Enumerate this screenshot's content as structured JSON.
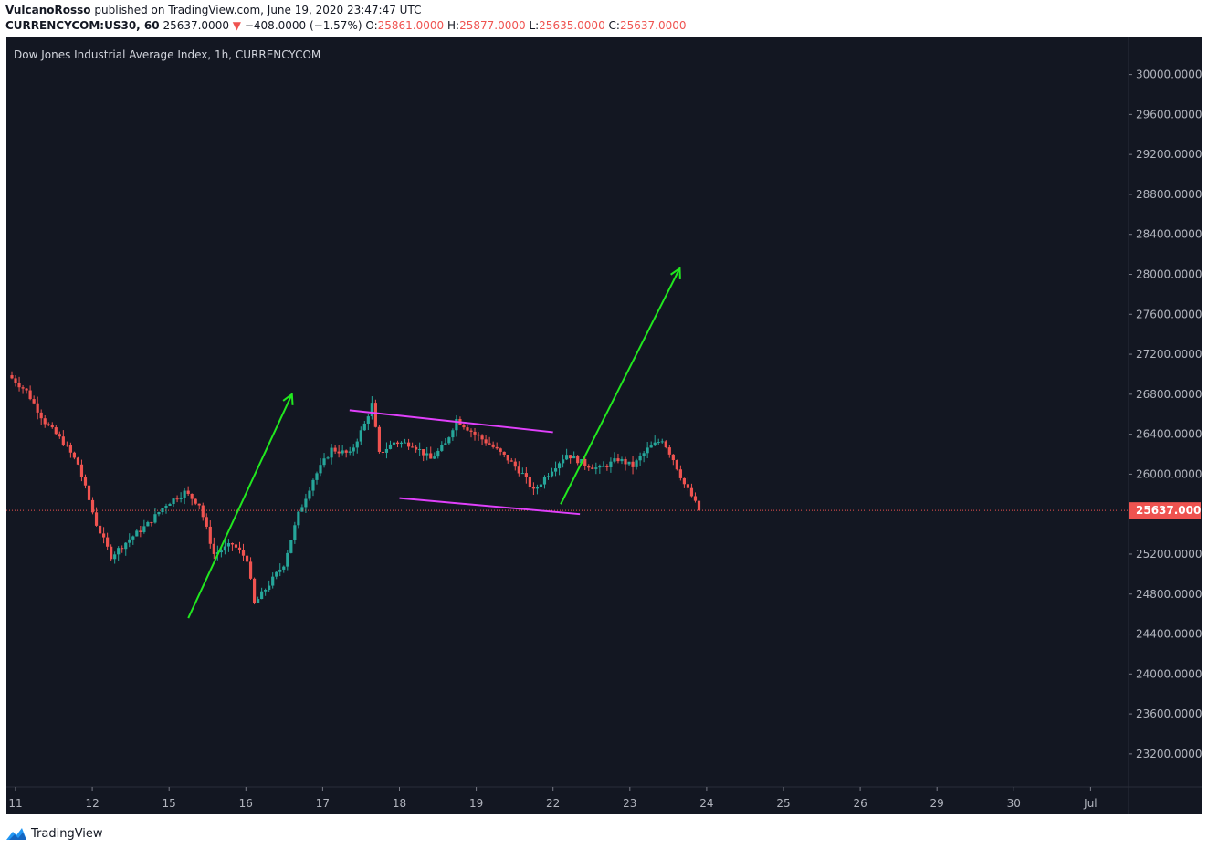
{
  "header": {
    "author": "VulcanoRosso",
    "published_text": "published on TradingView.com, June 19, 2020 23:47:47 UTC",
    "symbol_prefix": "CURRENCYCOM:US30, 60",
    "last_price": "25637.0000",
    "change_arrow": "▼",
    "change": "−408.0000 (−1.57%)",
    "o_label": "O:",
    "o_value": "25861.0000",
    "h_label": "H:",
    "h_value": "25877.0000",
    "l_label": "L:",
    "l_value": "25635.0000",
    "c_label": "C:",
    "c_value": "25637.0000"
  },
  "footer": {
    "brand": "TradingView",
    "logo_icon": "tradingview-logo-icon"
  },
  "colors": {
    "background": "#131722",
    "up": "#26a69a",
    "down": "#ef5350",
    "channel": "#e040fb",
    "arrow": "#21e81f",
    "axis_text": "#b2b5be",
    "price_tag": "#ef5350"
  },
  "chart_data": {
    "type": "candlestick",
    "title": "Dow Jones Industrial Average Index, 1h, CURRENCYCOM",
    "xlabel": "",
    "ylabel": "",
    "ylim": [
      22870,
      30380
    ],
    "y_ticks": [
      "30000.0000",
      "29600.0000",
      "29200.0000",
      "28800.0000",
      "28400.0000",
      "28000.0000",
      "27600.0000",
      "27200.0000",
      "26800.0000",
      "26400.0000",
      "26000.0000",
      "25200.0000",
      "24800.0000",
      "24400.0000",
      "24000.0000",
      "23600.0000",
      "23200.0000"
    ],
    "x_ticks": [
      "11",
      "12",
      "15",
      "16",
      "17",
      "18",
      "19",
      "22",
      "23",
      "24",
      "25",
      "26",
      "29",
      "30",
      "Jul"
    ],
    "grid": false,
    "last_price_line": {
      "value": 25637,
      "label": "25637.0000"
    },
    "candle_anchors": [
      {
        "i": 0,
        "p": 26960
      },
      {
        "i": 4,
        "p": 26830
      },
      {
        "i": 9,
        "p": 26520
      },
      {
        "i": 14,
        "p": 26320
      },
      {
        "i": 18,
        "p": 26100
      },
      {
        "i": 23,
        "p": 25500
      },
      {
        "i": 27,
        "p": 25180
      },
      {
        "i": 32,
        "p": 25350
      },
      {
        "i": 37,
        "p": 25500
      },
      {
        "i": 42,
        "p": 25700
      },
      {
        "i": 47,
        "p": 25820
      },
      {
        "i": 51,
        "p": 25700
      },
      {
        "i": 55,
        "p": 25200
      },
      {
        "i": 60,
        "p": 25300
      },
      {
        "i": 64,
        "p": 25150
      },
      {
        "i": 66,
        "p": 24700
      },
      {
        "i": 70,
        "p": 24900
      },
      {
        "i": 74,
        "p": 25100
      },
      {
        "i": 78,
        "p": 25600
      },
      {
        "i": 82,
        "p": 25950
      },
      {
        "i": 87,
        "p": 26250
      },
      {
        "i": 92,
        "p": 26200
      },
      {
        "i": 96,
        "p": 26500
      },
      {
        "i": 98,
        "p": 26700
      },
      {
        "i": 100,
        "p": 26200
      },
      {
        "i": 104,
        "p": 26320
      },
      {
        "i": 109,
        "p": 26300
      },
      {
        "i": 114,
        "p": 26150
      },
      {
        "i": 118,
        "p": 26300
      },
      {
        "i": 121,
        "p": 26550
      },
      {
        "i": 126,
        "p": 26400
      },
      {
        "i": 130,
        "p": 26300
      },
      {
        "i": 135,
        "p": 26150
      },
      {
        "i": 139,
        "p": 26000
      },
      {
        "i": 142,
        "p": 25830
      },
      {
        "i": 147,
        "p": 26050
      },
      {
        "i": 151,
        "p": 26200
      },
      {
        "i": 156,
        "p": 26100
      },
      {
        "i": 160,
        "p": 26050
      },
      {
        "i": 165,
        "p": 26150
      },
      {
        "i": 169,
        "p": 26080
      },
      {
        "i": 173,
        "p": 26250
      },
      {
        "i": 177,
        "p": 26350
      },
      {
        "i": 180,
        "p": 26150
      },
      {
        "i": 183,
        "p": 25900
      },
      {
        "i": 185,
        "p": 25780
      },
      {
        "i": 187,
        "p": 25637
      }
    ],
    "channel_upper": [
      {
        "day": 17.35,
        "p": 26640
      },
      {
        "day": 22.0,
        "p": 26420
      }
    ],
    "channel_lower": [
      {
        "day": 18.0,
        "p": 25760
      },
      {
        "day": 22.35,
        "p": 25600
      }
    ],
    "arrow_up_1": [
      {
        "day": 15.25,
        "p": 24560
      },
      {
        "day": 16.6,
        "p": 26800
      }
    ],
    "arrow_up_2": [
      {
        "day": 22.1,
        "p": 25700
      },
      {
        "day": 23.65,
        "p": 28060
      }
    ]
  }
}
